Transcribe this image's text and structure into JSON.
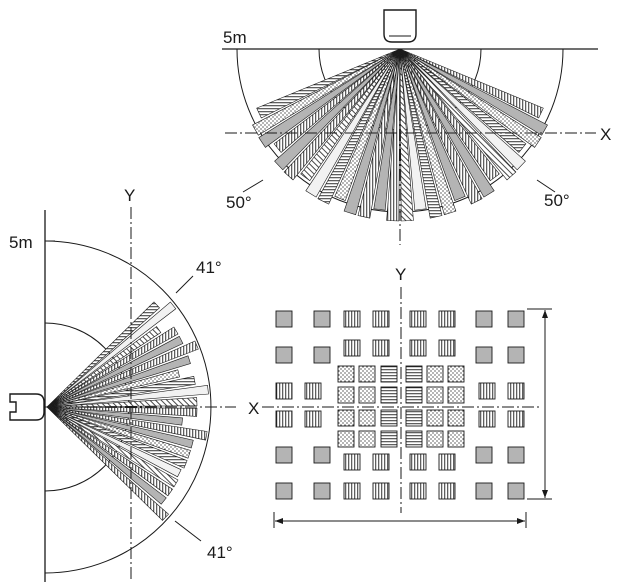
{
  "top_view": {
    "range_label": "5m",
    "x_axis_label": "X",
    "angle_left_label": "50°",
    "angle_right_label": "50°"
  },
  "side_view": {
    "range_label": "5m",
    "y_axis_label": "Y",
    "x_axis_label": "X",
    "angle_upper_label": "41°",
    "angle_lower_label": "41°"
  },
  "zone_map": {
    "y_axis_label": "Y"
  },
  "colors": {
    "line": "#1a1a1a",
    "zone_gray": "#b4b4b4",
    "zone_light": "#e6e6e6",
    "background": "#ffffff"
  },
  "icons": {
    "sensor_top": "sensor-head-icon",
    "sensor_side": "sensor-side-icon"
  }
}
